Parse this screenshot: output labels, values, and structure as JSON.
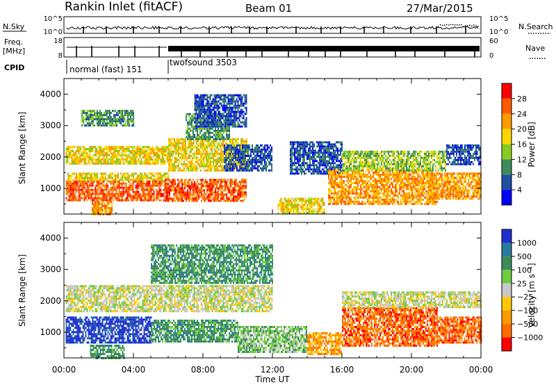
{
  "header": {
    "title": "Rankin Inlet (fitACF)",
    "beam": "Beam 01",
    "date": "27/Mar/2015"
  },
  "top_panels": {
    "nsky_label": "N.Sky",
    "nsearch_label": "N.Search",
    "nsky_ticks": [
      "10^5",
      "10^0"
    ],
    "freq_label_1": "Freq.",
    "freq_label_2": "[MHz]",
    "freq_ticks": [
      "18",
      "8"
    ],
    "nave_label": "Nave",
    "nave_ticks": [
      "60",
      "0"
    ],
    "cpid_label": "CPID",
    "cpid_mode_1": "normal (fast) 151",
    "cpid_mode_2": "twofsound 3503"
  },
  "power_colorbar": {
    "label": "Power [dB]",
    "ticks": [
      "28",
      "24",
      "20",
      "16",
      "12",
      "8",
      "4"
    ],
    "colors": [
      "#ff0000",
      "#ff5a00",
      "#ff9a00",
      "#ffd700",
      "#88cc22",
      "#3c8c5a",
      "#1e50a0",
      "#0000ff"
    ]
  },
  "velocity_colorbar": {
    "label": "Velocity [m s⁻¹]",
    "ticks": [
      "1000",
      "500",
      "100",
      "25",
      "−25",
      "−100",
      "−500",
      "−1000"
    ],
    "colors": [
      "#2030d0",
      "#2a7a9a",
      "#3c8c5a",
      "#6ecc40",
      "#c8c8c8",
      "#ffc800",
      "#ff9a00",
      "#ff6a00",
      "#ff0000"
    ]
  },
  "axes": {
    "ylabel": "Slant Range [km]",
    "xlabel": "Time UT",
    "y_ticks": [
      "4000",
      "3000",
      "2000",
      "1000"
    ],
    "x_ticks": [
      "00:00",
      "04:00",
      "08:00",
      "12:00",
      "16:00",
      "20:00",
      "00:00"
    ]
  },
  "chart_data": [
    {
      "type": "heatmap",
      "name": "power",
      "xlabel": "Time UT",
      "ylabel": "Slant Range [km]",
      "xlim_hours": [
        0,
        24
      ],
      "ylim_km": [
        180,
        4500
      ],
      "colorbar": "Power [dB]",
      "regions": [
        {
          "t0": 0.1,
          "t1": 6.0,
          "r0": 600,
          "r1": 1250,
          "level": 1
        },
        {
          "t0": 0.2,
          "t1": 6.0,
          "r0": 1250,
          "r1": 1500,
          "level": 3
        },
        {
          "t0": 0.1,
          "t1": 6.0,
          "r0": 1800,
          "r1": 2350,
          "level": 3
        },
        {
          "t0": 1.0,
          "t1": 4.0,
          "r0": 3000,
          "r1": 3500,
          "level": 5
        },
        {
          "t0": 1.6,
          "t1": 2.8,
          "r0": 180,
          "r1": 600,
          "level": 2
        },
        {
          "t0": 5.8,
          "t1": 10.5,
          "r0": 600,
          "r1": 1300,
          "level": 1
        },
        {
          "t0": 6.0,
          "t1": 10.5,
          "r0": 1600,
          "r1": 2600,
          "level": 3
        },
        {
          "t0": 7.0,
          "t1": 9.5,
          "r0": 2600,
          "r1": 3400,
          "level": 5
        },
        {
          "t0": 7.5,
          "t1": 10.5,
          "r0": 3000,
          "r1": 4000,
          "level": 6
        },
        {
          "t0": 9.2,
          "t1": 12.0,
          "r0": 1600,
          "r1": 2400,
          "level": 6
        },
        {
          "t0": 12.3,
          "t1": 15.0,
          "r0": 180,
          "r1": 700,
          "level": 3
        },
        {
          "t0": 13.0,
          "t1": 16.0,
          "r0": 1500,
          "r1": 2500,
          "level": 6
        },
        {
          "t0": 15.2,
          "t1": 21.5,
          "r0": 500,
          "r1": 1600,
          "level": 2
        },
        {
          "t0": 16.0,
          "t1": 22.0,
          "r0": 1600,
          "r1": 2200,
          "level": 4
        },
        {
          "t0": 21.0,
          "t1": 24.0,
          "r0": 700,
          "r1": 1500,
          "level": 2
        },
        {
          "t0": 22.0,
          "t1": 24.0,
          "r0": 1800,
          "r1": 2400,
          "level": 6
        }
      ]
    },
    {
      "type": "heatmap",
      "name": "velocity",
      "xlabel": "Time UT",
      "ylabel": "Slant Range [km]",
      "xlim_hours": [
        0,
        24
      ],
      "ylim_km": [
        180,
        4500
      ],
      "colorbar": "Velocity [m s⁻¹]",
      "regions": [
        {
          "t0": 0.1,
          "t1": 5.0,
          "r0": 700,
          "r1": 1500,
          "level": 0
        },
        {
          "t0": 5.0,
          "t1": 10.0,
          "r0": 700,
          "r1": 1400,
          "level": 2
        },
        {
          "t0": 0.1,
          "t1": 12.0,
          "r0": 1700,
          "r1": 2500,
          "level": 4
        },
        {
          "t0": 1.5,
          "t1": 3.5,
          "r0": 180,
          "r1": 600,
          "level": 2
        },
        {
          "t0": 5.0,
          "t1": 12.0,
          "r0": 2600,
          "r1": 3800,
          "level": 2
        },
        {
          "t0": 10.0,
          "t1": 14.0,
          "r0": 400,
          "r1": 1200,
          "level": 3
        },
        {
          "t0": 14.0,
          "t1": 16.0,
          "r0": 300,
          "r1": 1000,
          "level": 6
        },
        {
          "t0": 16.0,
          "t1": 21.5,
          "r0": 600,
          "r1": 1800,
          "level": 7
        },
        {
          "t0": 16.0,
          "t1": 24.0,
          "r0": 1800,
          "r1": 2300,
          "level": 4
        },
        {
          "t0": 21.5,
          "t1": 24.0,
          "r0": 700,
          "r1": 1500,
          "level": 7
        }
      ]
    }
  ]
}
